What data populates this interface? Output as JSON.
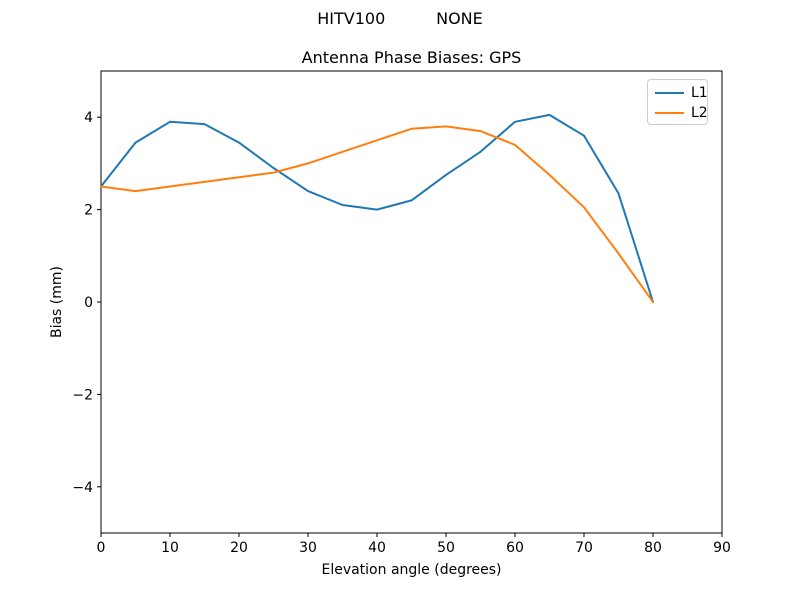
{
  "figure": {
    "suptitle": "HITV100          NONE",
    "background": "#ffffff",
    "frame_color": "#000000"
  },
  "chart_data": {
    "type": "line",
    "title": "Antenna Phase Biases: GPS",
    "xlabel": "Elevation angle (degrees)",
    "ylabel": "Bias (mm)",
    "xlim": [
      0,
      90
    ],
    "ylim": [
      -5,
      5
    ],
    "xticks": [
      0,
      10,
      20,
      30,
      40,
      50,
      60,
      70,
      80,
      90
    ],
    "yticks": [
      -4,
      -2,
      0,
      2,
      4
    ],
    "grid": false,
    "legend_position": "upper right",
    "x": [
      0,
      5,
      10,
      15,
      20,
      25,
      30,
      35,
      40,
      45,
      50,
      55,
      60,
      65,
      70,
      75,
      80
    ],
    "series": [
      {
        "name": "L1",
        "color": "#1f77b4",
        "values": [
          2.5,
          3.45,
          3.9,
          3.85,
          3.45,
          2.9,
          2.4,
          2.1,
          2.0,
          2.2,
          2.75,
          3.25,
          3.9,
          4.05,
          3.6,
          2.35,
          0.0
        ]
      },
      {
        "name": "L2",
        "color": "#ff7f0e",
        "values": [
          2.5,
          2.4,
          2.5,
          2.6,
          2.7,
          2.8,
          3.0,
          3.25,
          3.5,
          3.75,
          3.8,
          3.7,
          3.4,
          2.75,
          2.05,
          1.05,
          0.0
        ]
      }
    ]
  }
}
